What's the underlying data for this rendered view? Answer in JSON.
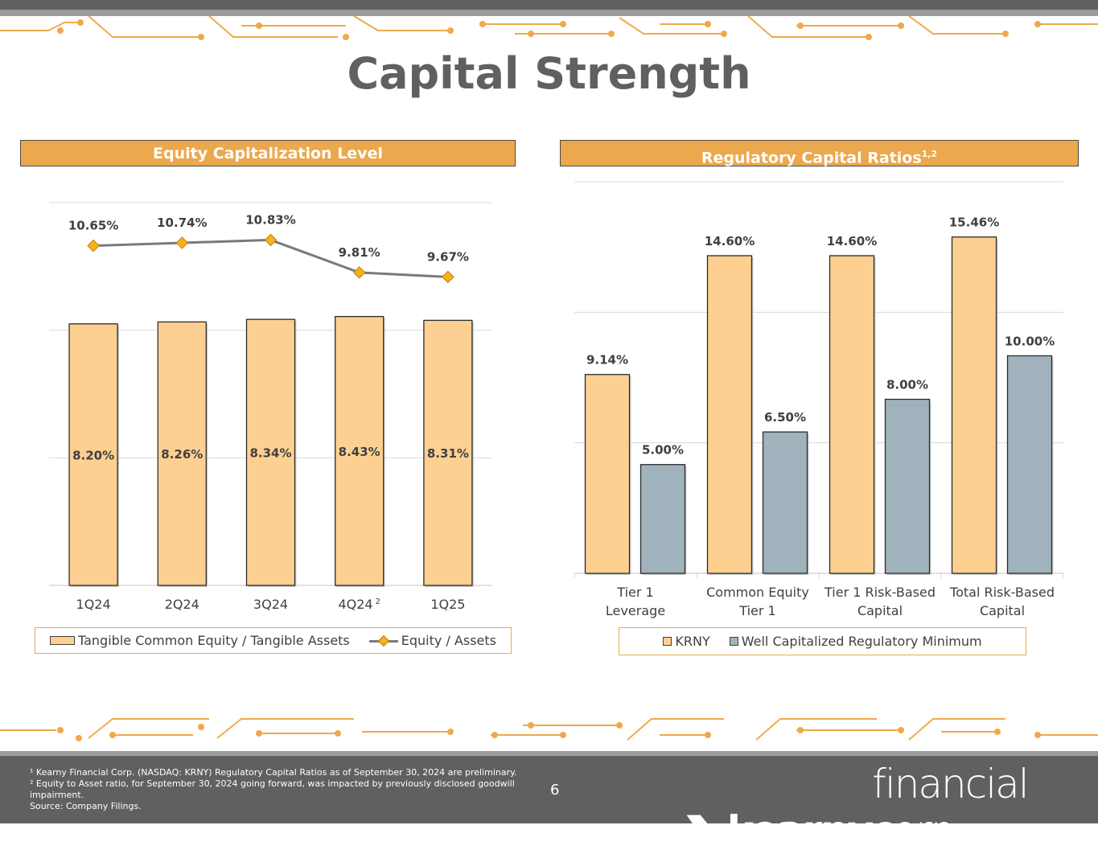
{
  "page": {
    "title": "Capital Strength",
    "page_number": "6",
    "footnotes": [
      "¹ Kearny Financial Corp. (NASDAQ: KRNY) Regulatory Capital Ratios as of September 30, 2024 are preliminary.",
      "² Equity to Asset ratio, for September 30, 2024 going forward, was impacted by previously disclosed goodwill impairment.",
      "Source: Company Filings."
    ],
    "logo": {
      "bold": "kearny",
      "light": "financial corp."
    },
    "colors": {
      "accent": "#eba84c",
      "bar_peach": "#fdd092",
      "bar_slate": "#a0b3bc",
      "line_gray": "#7a7a7a",
      "marker": "#f5b11c",
      "dark": "#5f6062"
    }
  },
  "chart_data": [
    {
      "type": "bar",
      "title": "Equity Capitalization Level",
      "categories": [
        "1Q24",
        "2Q24",
        "3Q24",
        "4Q24",
        "1Q25"
      ],
      "category_superscripts": [
        "",
        "",
        "",
        "2",
        ""
      ],
      "series": [
        {
          "name": "Tangible Common Equity / Tangible Assets",
          "kind": "bar",
          "values": [
            8.2,
            8.26,
            8.34,
            8.43,
            8.31
          ],
          "labels": [
            "8.20%",
            "8.26%",
            "8.34%",
            "8.43%",
            "8.31%"
          ]
        },
        {
          "name": "Equity / Assets",
          "kind": "line",
          "values": [
            10.65,
            10.74,
            10.83,
            9.81,
            9.67
          ],
          "labels": [
            "10.65%",
            "10.74%",
            "10.83%",
            "9.81%",
            "9.67%"
          ]
        }
      ],
      "legend": [
        "Tangible Common Equity / Tangible Assets",
        "Equity / Assets"
      ],
      "ylim": [
        0,
        12
      ],
      "grid": true
    },
    {
      "type": "bar",
      "title": "Regulatory Capital Ratios",
      "title_superscript": "1,2",
      "categories": [
        "Tier 1 Leverage",
        "Common Equity Tier 1",
        "Tier 1 Risk-Based Capital",
        "Total Risk-Based Capital"
      ],
      "category_lines": [
        [
          "Tier 1",
          "Leverage"
        ],
        [
          "Common Equity",
          "Tier 1"
        ],
        [
          "Tier 1 Risk-Based",
          "Capital"
        ],
        [
          "Total Risk-Based",
          "Capital"
        ]
      ],
      "series": [
        {
          "name": "KRNY",
          "values": [
            9.14,
            14.6,
            14.6,
            15.46
          ],
          "labels": [
            "9.14%",
            "14.60%",
            "14.60%",
            "15.46%"
          ]
        },
        {
          "name": "Well Capitalized Regulatory Minimum",
          "values": [
            5.0,
            6.5,
            8.0,
            10.0
          ],
          "labels": [
            "5.00%",
            "6.50%",
            "8.00%",
            "10.00%"
          ]
        }
      ],
      "legend": [
        "KRNY",
        "Well Capitalized Regulatory Minimum"
      ],
      "ylim": [
        0,
        18
      ],
      "grid": true
    }
  ]
}
